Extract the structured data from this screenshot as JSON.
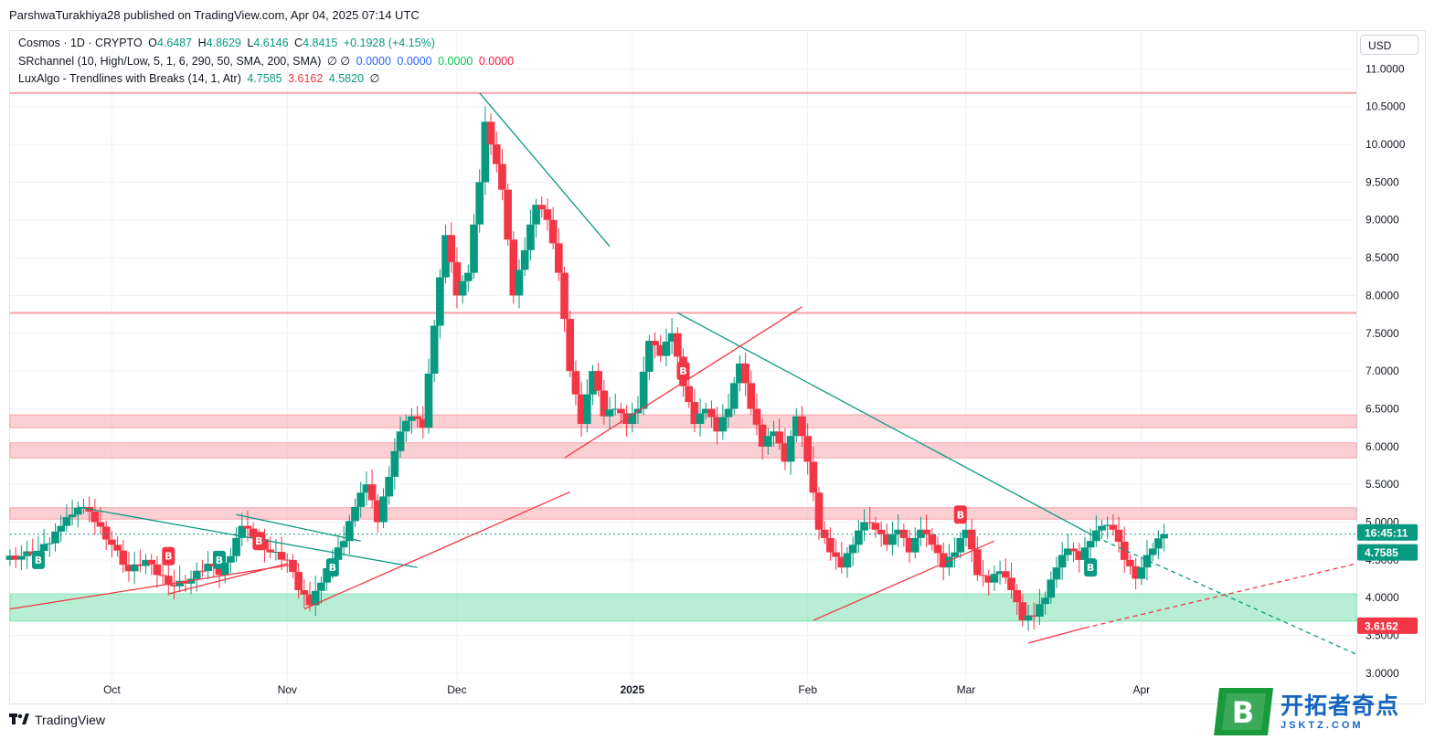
{
  "publisher_line": "ParshwaTurakhiya28 published on TradingView.com, Apr 04, 2025 07:14 UTC",
  "currency_button": "USD",
  "legend": {
    "symbol": "Cosmos · 1D · CRYPTO",
    "open_label": "O",
    "open": "4.6487",
    "high_label": "H",
    "high": "4.8629",
    "low_label": "L",
    "low": "4.6146",
    "close_label": "C",
    "close": "4.8415",
    "change": "+0.1928 (+4.15%)",
    "indicator1_name": "SRchannel (10, High/Low, 5, 1, 6, 290, 50, SMA, 200, SMA)",
    "indicator1_flags": "∅  ∅",
    "indicator1_values": [
      "0.0000",
      "0.0000",
      "0.0000",
      "0.0000"
    ],
    "indicator2_name": "LuxAlgo - Trendlines with Breaks (14, 1, Atr)",
    "indicator2_values": [
      "4.7585",
      "3.6162",
      "4.5820"
    ],
    "indicator2_flag": "∅"
  },
  "price_labels": {
    "countdown": "16:45:11",
    "current": "4.7585",
    "lower": "3.6162"
  },
  "footer_brand": "TradingView",
  "watermark": {
    "cn": "开拓者奇点",
    "en": "JSKTZ.COM",
    "badge": "B"
  },
  "colors": {
    "up": "#089981",
    "down": "#f23645",
    "resistance_zone": "#f7a1a8",
    "support_zone": "#7ee2b0",
    "trend_green": "#089981",
    "trend_red": "#f23645"
  },
  "chart_data": {
    "type": "candlestick",
    "x_axis": {
      "type": "date",
      "ticks": [
        {
          "label": "Oct",
          "date": "2024-10-01"
        },
        {
          "label": "Nov",
          "date": "2024-11-01"
        },
        {
          "label": "Dec",
          "date": "2024-12-01"
        },
        {
          "label": "2025",
          "date": "2025-01-01",
          "bold": true
        },
        {
          "label": "Feb",
          "date": "2025-02-01"
        },
        {
          "label": "Mar",
          "date": "2025-03-01"
        },
        {
          "label": "Apr",
          "date": "2025-04-01"
        }
      ],
      "range": [
        "2024-09-13",
        "2025-05-09"
      ]
    },
    "y_axis": {
      "range": [
        2.6,
        11.5
      ],
      "ticks": [
        "3.0000",
        "3.5000",
        "4.0000",
        "4.5000",
        "5.0000",
        "5.5000",
        "6.0000",
        "6.5000",
        "7.0000",
        "7.5000",
        "8.0000",
        "8.5000",
        "9.0000",
        "9.5000",
        "10.0000",
        "10.5000",
        "11.0000"
      ],
      "grid": true
    },
    "closes": [
      [
        "2024-09-13",
        4.55
      ],
      [
        "2024-09-16",
        4.62
      ],
      [
        "2024-09-19",
        4.72
      ],
      [
        "2024-09-21",
        4.95
      ],
      [
        "2024-09-23",
        5.1
      ],
      [
        "2024-09-25",
        5.2
      ],
      [
        "2024-09-27",
        5.0
      ],
      [
        "2024-09-29",
        4.7
      ],
      [
        "2024-10-02",
        4.35
      ],
      [
        "2024-10-05",
        4.5
      ],
      [
        "2024-10-08",
        4.3
      ],
      [
        "2024-10-10",
        4.15
      ],
      [
        "2024-10-13",
        4.25
      ],
      [
        "2024-10-16",
        4.45
      ],
      [
        "2024-10-19",
        4.3
      ],
      [
        "2024-10-21",
        4.55
      ],
      [
        "2024-10-23",
        4.95
      ],
      [
        "2024-10-25",
        4.8
      ],
      [
        "2024-10-27",
        4.6
      ],
      [
        "2024-10-30",
        4.5
      ],
      [
        "2024-11-02",
        4.1
      ],
      [
        "2024-11-04",
        3.9
      ],
      [
        "2024-11-06",
        4.2
      ],
      [
        "2024-11-08",
        4.5
      ],
      [
        "2024-11-10",
        4.75
      ],
      [
        "2024-11-12",
        5.2
      ],
      [
        "2024-11-14",
        5.5
      ],
      [
        "2024-11-16",
        5.0
      ],
      [
        "2024-11-18",
        5.6
      ],
      [
        "2024-11-20",
        6.2
      ],
      [
        "2024-11-22",
        6.4
      ],
      [
        "2024-11-24",
        6.25
      ],
      [
        "2024-11-26",
        7.6
      ],
      [
        "2024-11-28",
        8.8
      ],
      [
        "2024-11-30",
        8.0
      ],
      [
        "2024-12-02",
        8.3
      ],
      [
        "2024-12-04",
        9.5
      ],
      [
        "2024-12-06",
        10.3
      ],
      [
        "2024-12-07",
        10.0
      ],
      [
        "2024-12-08",
        9.4
      ],
      [
        "2024-12-10",
        8.0
      ],
      [
        "2024-12-12",
        8.6
      ],
      [
        "2024-12-14",
        9.2
      ],
      [
        "2024-12-16",
        9.0
      ],
      [
        "2024-12-18",
        8.3
      ],
      [
        "2024-12-20",
        7.0
      ],
      [
        "2024-12-22",
        6.3
      ],
      [
        "2024-12-24",
        7.0
      ],
      [
        "2024-12-26",
        6.4
      ],
      [
        "2024-12-28",
        6.5
      ],
      [
        "2024-12-30",
        6.3
      ],
      [
        "2025-01-01",
        6.5
      ],
      [
        "2025-01-03",
        7.4
      ],
      [
        "2025-01-05",
        7.2
      ],
      [
        "2025-01-07",
        7.5
      ],
      [
        "2025-01-09",
        6.8
      ],
      [
        "2025-01-11",
        6.3
      ],
      [
        "2025-01-13",
        6.5
      ],
      [
        "2025-01-15",
        6.2
      ],
      [
        "2025-01-17",
        6.5
      ],
      [
        "2025-01-19",
        7.1
      ],
      [
        "2025-01-21",
        6.5
      ],
      [
        "2025-01-23",
        6.0
      ],
      [
        "2025-01-25",
        6.2
      ],
      [
        "2025-01-27",
        5.8
      ],
      [
        "2025-01-29",
        6.4
      ],
      [
        "2025-01-31",
        5.8
      ],
      [
        "2025-02-02",
        4.9
      ],
      [
        "2025-02-04",
        4.6
      ],
      [
        "2025-02-06",
        4.4
      ],
      [
        "2025-02-08",
        4.7
      ],
      [
        "2025-02-10",
        5.0
      ],
      [
        "2025-02-12",
        4.9
      ],
      [
        "2025-02-14",
        4.7
      ],
      [
        "2025-02-16",
        4.9
      ],
      [
        "2025-02-18",
        4.6
      ],
      [
        "2025-02-20",
        4.9
      ],
      [
        "2025-02-22",
        4.7
      ],
      [
        "2025-02-24",
        4.4
      ],
      [
        "2025-02-26",
        4.6
      ],
      [
        "2025-02-28",
        4.9
      ],
      [
        "2025-03-02",
        4.3
      ],
      [
        "2025-03-04",
        4.2
      ],
      [
        "2025-03-06",
        4.35
      ],
      [
        "2025-03-08",
        4.1
      ],
      [
        "2025-03-10",
        3.7
      ],
      [
        "2025-03-12",
        3.75
      ],
      [
        "2025-03-14",
        4.0
      ],
      [
        "2025-03-16",
        4.4
      ],
      [
        "2025-03-18",
        4.65
      ],
      [
        "2025-03-20",
        4.5
      ],
      [
        "2025-03-22",
        4.75
      ],
      [
        "2025-03-24",
        4.95
      ],
      [
        "2025-03-26",
        4.9
      ],
      [
        "2025-03-28",
        4.5
      ],
      [
        "2025-03-30",
        4.25
      ],
      [
        "2025-04-01",
        4.4
      ],
      [
        "2025-04-02",
        4.65
      ],
      [
        "2025-04-04",
        4.84
      ]
    ],
    "horizontal_lines": [
      10.68,
      7.77
    ],
    "resistance_zones": [
      [
        6.25,
        6.42
      ],
      [
        5.85,
        6.05
      ],
      [
        5.04,
        5.19
      ]
    ],
    "support_zones": [
      [
        3.69,
        4.05
      ]
    ],
    "trendlines": [
      {
        "color": "green",
        "from": [
          "2024-09-25",
          5.2
        ],
        "to": [
          "2024-11-24",
          4.4
        ]
      },
      {
        "color": "green",
        "from": [
          "2024-10-23",
          5.1
        ],
        "to": [
          "2024-11-14",
          4.75
        ]
      },
      {
        "color": "green",
        "from": [
          "2024-12-05",
          10.68
        ],
        "to": [
          "2024-12-28",
          8.65
        ]
      },
      {
        "color": "green",
        "from": [
          "2025-01-09",
          7.77
        ],
        "to": [
          "2025-03-24",
          4.8
        ]
      },
      {
        "color": "green",
        "dashed": true,
        "from": [
          "2025-03-24",
          4.8
        ],
        "to": [
          "2025-05-09",
          3.25
        ]
      },
      {
        "color": "red",
        "from": [
          "2024-09-13",
          3.85
        ],
        "to": [
          "2024-11-03",
          4.45
        ]
      },
      {
        "color": "red",
        "from": [
          "2024-10-11",
          4.05
        ],
        "to": [
          "2024-11-01",
          4.45
        ]
      },
      {
        "color": "red",
        "from": [
          "2024-11-04",
          3.85
        ],
        "to": [
          "2024-12-21",
          5.4
        ]
      },
      {
        "color": "red",
        "from": [
          "2024-12-20",
          5.85
        ],
        "to": [
          "2025-01-31",
          7.85
        ]
      },
      {
        "color": "red",
        "from": [
          "2025-02-02",
          3.7
        ],
        "to": [
          "2025-03-06",
          4.75
        ]
      },
      {
        "color": "red",
        "from": [
          "2025-03-12",
          3.4
        ],
        "to": [
          "2025-03-22",
          3.6
        ]
      },
      {
        "color": "red",
        "dashed": true,
        "from": [
          "2025-03-22",
          3.6
        ],
        "to": [
          "2025-05-09",
          4.45
        ]
      }
    ],
    "current_price_line": 4.84,
    "buy_markers": [
      [
        "2024-09-18",
        4.5
      ],
      [
        "2024-10-20",
        4.5
      ],
      [
        "2024-11-09",
        4.4
      ],
      [
        "2025-03-23",
        4.4
      ]
    ],
    "sell_markers": [
      [
        "2024-10-11",
        4.55
      ],
      [
        "2024-10-27",
        4.75
      ],
      [
        "2025-01-10",
        7.0
      ],
      [
        "2025-02-28",
        5.1
      ]
    ],
    "marker_labels": {
      "buy": "B",
      "sell": "B"
    }
  }
}
